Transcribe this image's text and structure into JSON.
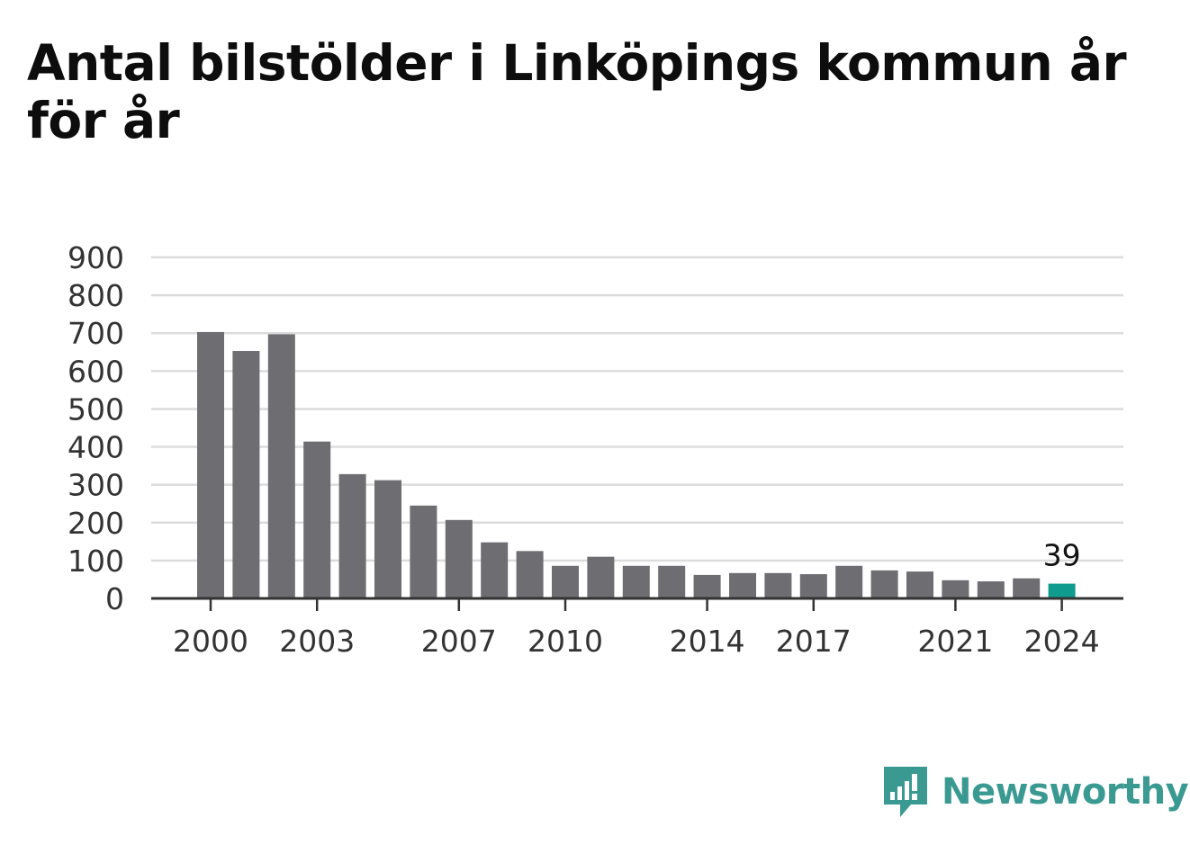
{
  "title": "Antal bilstölder i Linköpings kommun år för år",
  "brand": {
    "name": "Newsworthy",
    "icon": "newsworthy-logo-icon",
    "color": "#3a9a92"
  },
  "chart_data": {
    "type": "bar",
    "title": "Antal bilstölder i Linköpings kommun år för år",
    "xlabel": "",
    "ylabel": "",
    "categories": [
      "2000",
      "2001",
      "2002",
      "2003",
      "2004",
      "2005",
      "2006",
      "2007",
      "2008",
      "2009",
      "2010",
      "2011",
      "2012",
      "2013",
      "2014",
      "2015",
      "2016",
      "2017",
      "2018",
      "2019",
      "2020",
      "2021",
      "2022",
      "2023",
      "2024"
    ],
    "values": [
      703,
      653,
      697,
      414,
      328,
      312,
      245,
      207,
      148,
      125,
      86,
      110,
      86,
      86,
      62,
      67,
      67,
      64,
      86,
      74,
      71,
      48,
      45,
      53,
      39
    ],
    "x_tick_labels": [
      "2000",
      "2003",
      "2007",
      "2010",
      "2014",
      "2017",
      "2021",
      "2024"
    ],
    "y_ticks": [
      0,
      100,
      200,
      300,
      400,
      500,
      600,
      700,
      800,
      900
    ],
    "ylim": [
      0,
      900
    ],
    "grid": true,
    "highlight": {
      "category": "2024",
      "label": "39"
    },
    "colors": {
      "bar": "#6e6d72",
      "highlight": "#0f9b8e",
      "grid": "#dcdcdc",
      "axis": "#333333"
    }
  }
}
